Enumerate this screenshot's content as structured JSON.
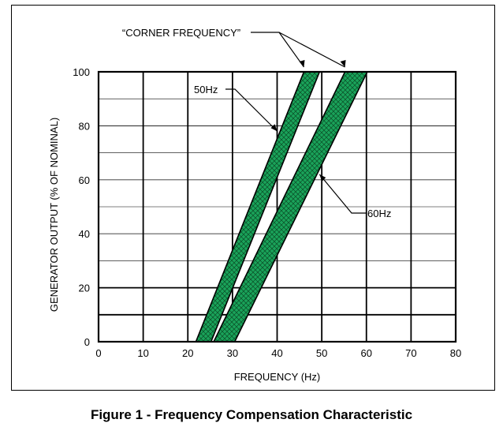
{
  "caption": "Figure 1 - Frequency Compensation Characteristic",
  "chart_data": {
    "type": "area",
    "xlabel": "FREQUENCY (Hz)",
    "ylabel": "GENERATOR OUTPUT (% OF NOMINAL)",
    "xlim": [
      0,
      80
    ],
    "ylim": [
      0,
      100
    ],
    "x_ticks": [
      0,
      10,
      20,
      30,
      40,
      50,
      60,
      70,
      80
    ],
    "y_ticks": [
      0,
      20,
      40,
      60,
      80,
      100
    ],
    "grid": true,
    "bold_gridlines_y": [
      10,
      20
    ],
    "band_color": "#1aa35a",
    "series": [
      {
        "name": "50Hz",
        "left_edge": [
          [
            21.8,
            0
          ],
          [
            46.0,
            100
          ]
        ],
        "right_edge": [
          [
            25.2,
            0
          ],
          [
            49.5,
            100
          ]
        ]
      },
      {
        "name": "60Hz",
        "left_edge": [
          [
            25.8,
            0
          ],
          [
            55.2,
            100
          ]
        ],
        "right_edge": [
          [
            30.5,
            0
          ],
          [
            60.2,
            100
          ]
        ]
      }
    ],
    "annotations": [
      {
        "text": "“CORNER FREQUENCY”",
        "points_to": [
          [
            46.0,
            100
          ],
          [
            55.2,
            100
          ]
        ]
      },
      {
        "text": "50Hz",
        "points_to": [
          [
            40.0,
            78
          ]
        ]
      },
      {
        "text": "60Hz",
        "points_to": [
          [
            49.5,
            62
          ]
        ]
      }
    ]
  }
}
